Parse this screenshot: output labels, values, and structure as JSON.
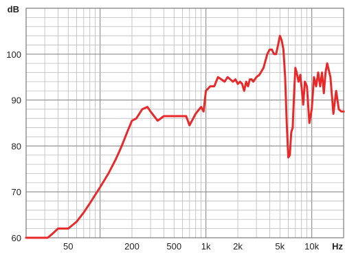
{
  "chart_data": {
    "type": "line",
    "title": "",
    "xlabel": "",
    "ylabel": "",
    "x_scale": "log",
    "x_unit_label": "Hz",
    "y_unit_label": "dB",
    "xlim": [
      20,
      20000
    ],
    "ylim": [
      60,
      110
    ],
    "grid": true,
    "x_ticks": [
      {
        "value": 50,
        "label": "50"
      },
      {
        "value": 200,
        "label": "200"
      },
      {
        "value": 500,
        "label": "500"
      },
      {
        "value": 1000,
        "label": "1k"
      },
      {
        "value": 2000,
        "label": "2k"
      },
      {
        "value": 5000,
        "label": "5k"
      },
      {
        "value": 10000,
        "label": "10k"
      }
    ],
    "y_ticks": [
      {
        "value": 60,
        "label": "60"
      },
      {
        "value": 70,
        "label": "70"
      },
      {
        "value": 80,
        "label": "80"
      },
      {
        "value": 90,
        "label": "90"
      },
      {
        "value": 100,
        "label": "100"
      }
    ],
    "series": [
      {
        "color": "#e8292a",
        "x": [
          20,
          32,
          36,
          40,
          45,
          50,
          60,
          70,
          80,
          100,
          120,
          140,
          150,
          160,
          170,
          180,
          200,
          220,
          250,
          280,
          300,
          350,
          400,
          450,
          500,
          550,
          600,
          650,
          700,
          800,
          900,
          950,
          1000,
          1100,
          1200,
          1300,
          1400,
          1500,
          1600,
          1700,
          1800,
          1900,
          2000,
          2100,
          2200,
          2300,
          2400,
          2500,
          2600,
          2700,
          2800,
          3000,
          3200,
          3500,
          3800,
          4000,
          4200,
          4400,
          4600,
          4800,
          5000,
          5200,
          5400,
          5600,
          5800,
          6000,
          6200,
          6400,
          6600,
          6800,
          7000,
          7200,
          7500,
          7800,
          8000,
          8300,
          8600,
          9000,
          9500,
          10000,
          10500,
          11000,
          11500,
          12000,
          12500,
          13000,
          13500,
          14000,
          15000,
          16000,
          17000,
          18000,
          19000,
          20000
        ],
        "values": [
          60,
          60,
          61,
          62,
          62,
          62,
          63.5,
          65.5,
          67.5,
          71,
          74,
          77,
          78.5,
          80,
          81.5,
          83,
          85.5,
          86,
          88,
          88.5,
          87.5,
          85.5,
          86.5,
          86.5,
          86.5,
          86.5,
          86.5,
          86.5,
          84.5,
          87,
          88.5,
          87.5,
          92,
          93,
          93,
          95,
          94.5,
          94,
          95,
          94.5,
          94,
          94.5,
          93.5,
          94,
          93.5,
          92,
          94,
          93,
          94.5,
          94.5,
          94,
          95,
          95.5,
          97,
          100,
          101,
          101,
          100,
          100,
          102,
          104,
          103,
          101,
          95,
          85,
          77.5,
          78,
          83,
          84,
          91,
          97,
          96,
          94,
          95.5,
          93,
          89,
          94,
          93,
          85,
          88,
          95,
          93,
          96,
          93,
          96,
          91.5,
          96,
          98,
          95,
          87,
          92,
          88,
          87.5,
          87.5
        ]
      }
    ]
  }
}
